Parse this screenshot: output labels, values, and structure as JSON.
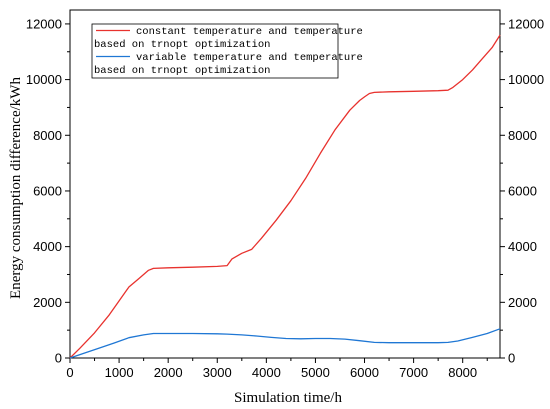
{
  "chart_data": {
    "type": "line",
    "xlabel": "Simulation time/h",
    "ylabel": "Energy consumption difference/kWh",
    "xlim": [
      0,
      8760
    ],
    "ylim": [
      0,
      12500
    ],
    "xticks": [
      0,
      1000,
      2000,
      3000,
      4000,
      5000,
      6000,
      7000,
      8000
    ],
    "yticks": [
      0,
      2000,
      4000,
      6000,
      8000,
      10000,
      12000
    ],
    "secondary_yaxis": true,
    "grid": false,
    "legend_position": "top-left",
    "series": [
      {
        "name_lines": [
          "constant temperature and temperature",
          "based on trnopt optimization"
        ],
        "color": "#e8322e",
        "x": [
          0,
          200,
          500,
          800,
          1000,
          1200,
          1400,
          1600,
          1700,
          2000,
          2500,
          3000,
          3200,
          3300,
          3500,
          3700,
          3900,
          4200,
          4500,
          4800,
          5100,
          5400,
          5700,
          5900,
          6000,
          6100,
          6200,
          6500,
          7000,
          7500,
          7700,
          7800,
          8000,
          8200,
          8400,
          8600,
          8760
        ],
        "y": [
          0,
          350,
          900,
          1550,
          2050,
          2550,
          2850,
          3150,
          3220,
          3240,
          3260,
          3290,
          3320,
          3560,
          3760,
          3900,
          4300,
          4950,
          5650,
          6450,
          7350,
          8200,
          8900,
          9250,
          9380,
          9500,
          9540,
          9560,
          9580,
          9600,
          9620,
          9720,
          10000,
          10350,
          10750,
          11150,
          11600
        ]
      },
      {
        "name_lines": [
          "variable temperature and temperature",
          "based on trnopt optimization"
        ],
        "color": "#1f77d4",
        "x": [
          0,
          300,
          600,
          900,
          1200,
          1500,
          1700,
          2000,
          2500,
          3000,
          3200,
          3500,
          3800,
          4100,
          4400,
          4700,
          5000,
          5300,
          5600,
          5900,
          6200,
          6500,
          7000,
          7500,
          7700,
          7900,
          8200,
          8500,
          8760
        ],
        "y": [
          0,
          180,
          360,
          540,
          730,
          830,
          880,
          880,
          880,
          870,
          860,
          830,
          790,
          740,
          700,
          690,
          700,
          700,
          680,
          620,
          560,
          550,
          550,
          550,
          560,
          610,
          740,
          880,
          1050
        ]
      }
    ]
  }
}
